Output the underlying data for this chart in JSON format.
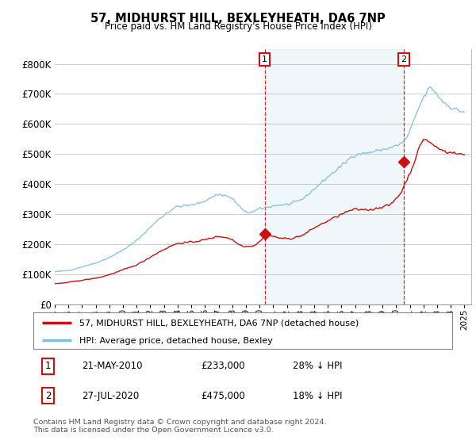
{
  "title": "57, MIDHURST HILL, BEXLEYHEATH, DA6 7NP",
  "subtitle": "Price paid vs. HM Land Registry's House Price Index (HPI)",
  "background_color": "#ffffff",
  "plot_bg_color": "#ffffff",
  "grid_color": "#cccccc",
  "hpi_color": "#7fbfdf",
  "price_color": "#cc1111",
  "ylim": [
    0,
    850000
  ],
  "yticks": [
    0,
    100000,
    200000,
    300000,
    400000,
    500000,
    600000,
    700000,
    800000
  ],
  "ytick_labels": [
    "£0",
    "£100K",
    "£200K",
    "£300K",
    "£400K",
    "£500K",
    "£600K",
    "£700K",
    "£800K"
  ],
  "xlim_start": 1995.0,
  "xlim_end": 2025.5,
  "transactions": [
    {
      "label": "1",
      "date_str": "21-MAY-2010",
      "year": 2010.38,
      "price": 233000,
      "pct": "28%",
      "direction": "↓"
    },
    {
      "label": "2",
      "date_str": "27-JUL-2020",
      "year": 2020.56,
      "price": 475000,
      "pct": "18%",
      "direction": "↓"
    }
  ],
  "legend_label_red": "57, MIDHURST HILL, BEXLEYHEATH, DA6 7NP (detached house)",
  "legend_label_blue": "HPI: Average price, detached house, Bexley",
  "footer": "Contains HM Land Registry data © Crown copyright and database right 2024.\nThis data is licensed under the Open Government Licence v3.0."
}
